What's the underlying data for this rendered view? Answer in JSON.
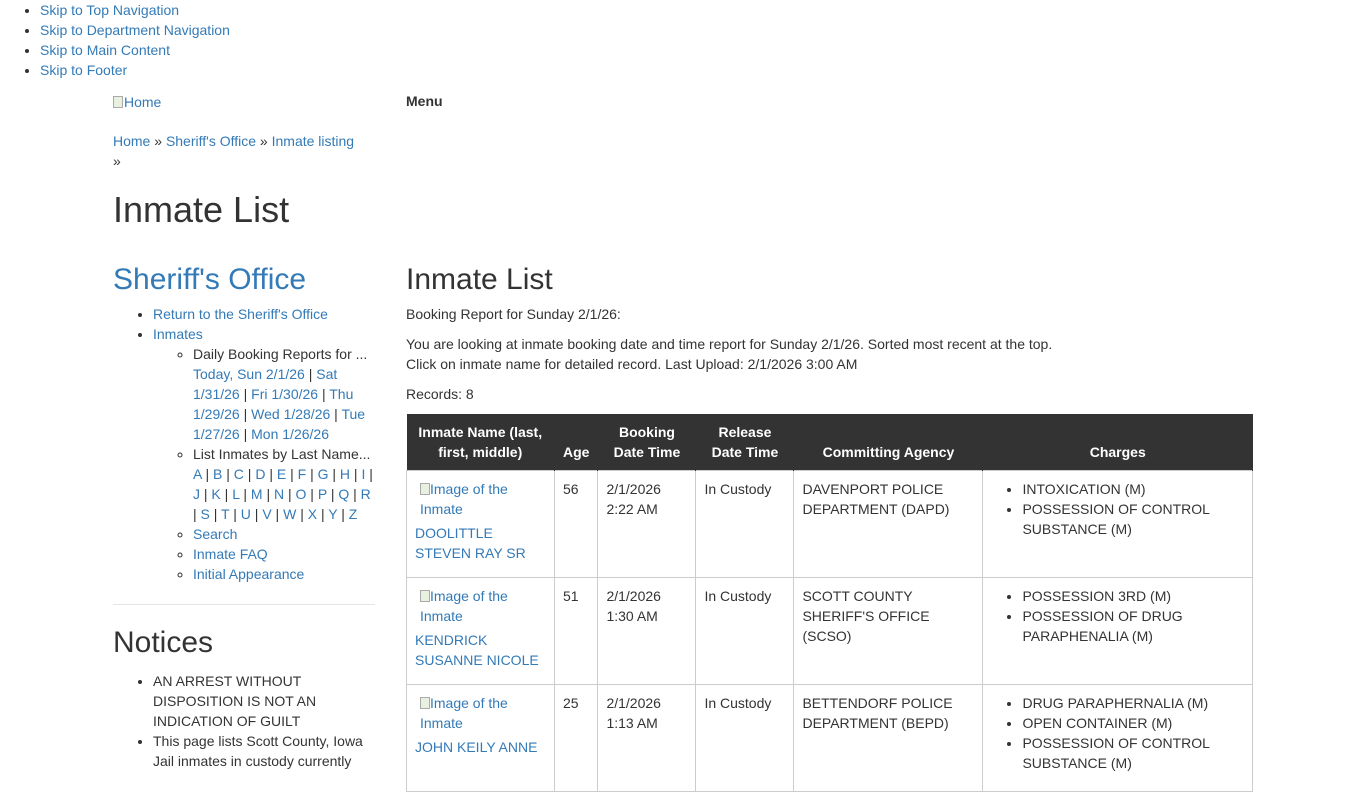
{
  "skip_links": [
    "Skip to Top Navigation",
    "Skip to Department Navigation",
    "Skip to Main Content",
    "Skip to Footer"
  ],
  "logo_alt": "Home",
  "menu_label": "Menu",
  "breadcrumb": [
    "Home",
    "Sheriff's Office",
    "Inmate listing"
  ],
  "breadcrumb_sep": "»",
  "page_title": "Inmate List",
  "sidebar": {
    "title": "Sheriff's Office",
    "items": [
      {
        "label": "Return to the Sheriff's Office"
      },
      {
        "label": "Inmates"
      }
    ],
    "daily_label": "Daily Booking Reports for ...",
    "daily_links": [
      "Today, Sun 2/1/26",
      "Sat 1/31/26",
      "Fri 1/30/26",
      "Thu 1/29/26",
      "Wed 1/28/26",
      "Tue 1/27/26",
      "Mon 1/26/26"
    ],
    "lastname_label": "List Inmates by Last Name...",
    "letters": [
      "A",
      "B",
      "C",
      "D",
      "E",
      "F",
      "G",
      "H",
      "I",
      "J",
      "K",
      "L",
      "M",
      "N",
      "O",
      "P",
      "Q",
      "R",
      "S",
      "T",
      "U",
      "V",
      "W",
      "X",
      "Y",
      "Z"
    ],
    "more": [
      "Search",
      "Inmate FAQ",
      "Initial Appearance"
    ]
  },
  "notices": {
    "title": "Notices",
    "items": [
      "AN ARREST WITHOUT DISPOSITION IS NOT AN INDICATION OF GUILT",
      "This page lists Scott County, Iowa Jail inmates in custody currently"
    ]
  },
  "main": {
    "title": "Inmate List",
    "subtitle": "Booking Report for Sunday 2/1/26:",
    "desc1": "You are looking at inmate booking date and time report for Sunday 2/1/26. Sorted most recent at the top.",
    "desc2": "Click on inmate name for detailed record. Last Upload: 2/1/2026 3:00 AM",
    "records": "Records: 8",
    "headers": [
      "Inmate Name (last, first, middle)",
      "Age",
      "Booking Date Time",
      "Release Date Time",
      "Committing Agency",
      "Charges"
    ],
    "image_alt": "Image of the Inmate",
    "rows": [
      {
        "name": "DOOLITTLE STEVEN RAY SR",
        "age": "56",
        "booking": "2/1/2026 2:22 AM",
        "release": "In Custody",
        "agency": "DAVENPORT POLICE DEPARTMENT (DAPD)",
        "charges": [
          "INTOXICATION (M)",
          "POSSESSION OF CONTROL SUBSTANCE (M)"
        ]
      },
      {
        "name": "KENDRICK SUSANNE NICOLE",
        "age": "51",
        "booking": "2/1/2026 1:30 AM",
        "release": "In Custody",
        "agency": "SCOTT COUNTY SHERIFF'S OFFICE (SCSO)",
        "charges": [
          "POSSESSION 3RD (M)",
          "POSSESSION OF DRUG PARAPHENALIA (M)"
        ]
      },
      {
        "name": "JOHN KEILY ANNE",
        "age": "25",
        "booking": "2/1/2026 1:13 AM",
        "release": "In Custody",
        "agency": "BETTENDORF POLICE DEPARTMENT (BEPD)",
        "charges": [
          "DRUG PARAPHERNALIA (M)",
          "OPEN CONTAINER (M)",
          "POSSESSION OF CONTROL SUBSTANCE (M)"
        ]
      }
    ]
  }
}
